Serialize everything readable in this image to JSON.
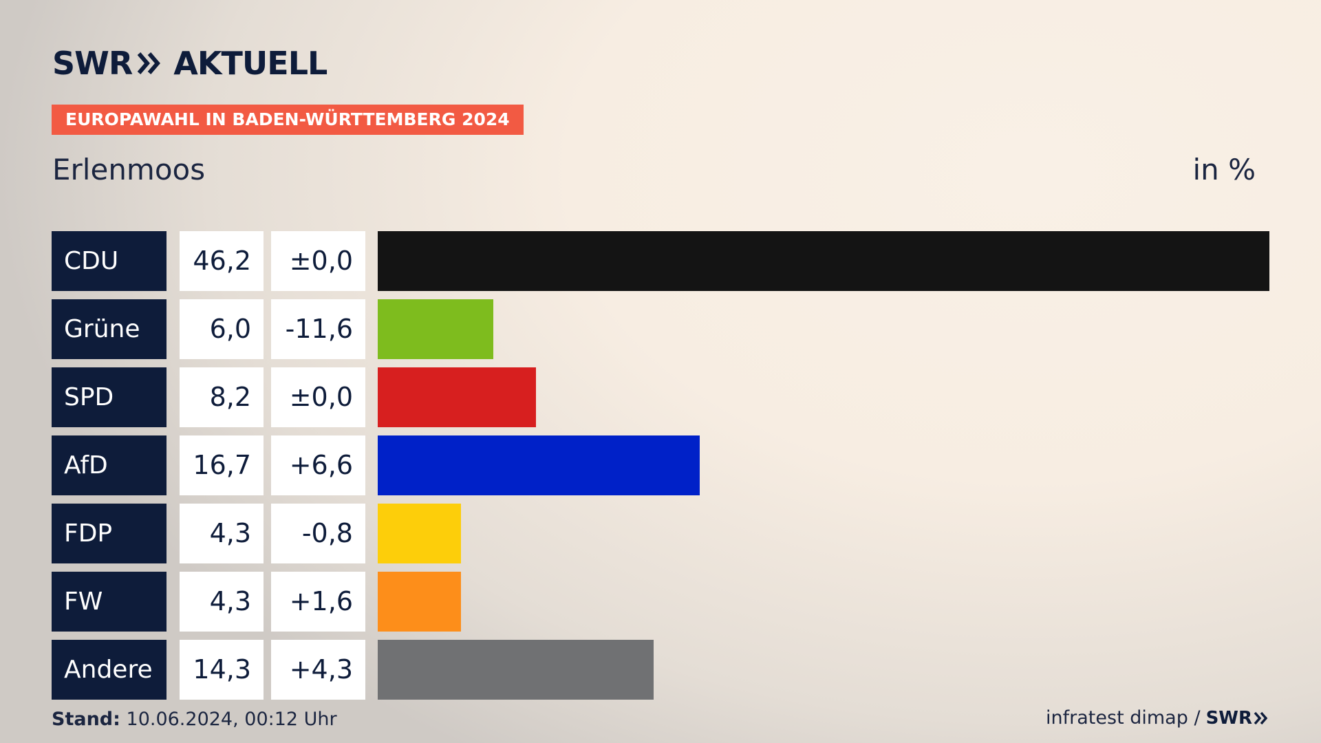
{
  "header": {
    "logo_left": "SWR",
    "logo_right": "AKTUELL",
    "badge": "EUROPAWAHL IN BADEN-WÜRTTEMBERG 2024",
    "place": "Erlenmoos",
    "unit": "in %"
  },
  "chart_data": {
    "type": "bar",
    "orientation": "horizontal",
    "categories": [
      "CDU",
      "Grüne",
      "SPD",
      "AfD",
      "FDP",
      "FW",
      "Andere"
    ],
    "values": [
      46.2,
      6.0,
      8.2,
      16.7,
      4.3,
      4.3,
      14.3
    ],
    "value_labels": [
      "46,2",
      "6,0",
      "8,2",
      "16,7",
      "4,3",
      "4,3",
      "14,3"
    ],
    "changes": [
      "±0,0",
      "-11,6",
      "±0,0",
      "+6,6",
      "-0,8",
      "+1,6",
      "+4,3"
    ],
    "colors": [
      "#141414",
      "#7ebc1e",
      "#d71f1f",
      "#0021c8",
      "#fdce0a",
      "#fd8e1a",
      "#707173"
    ],
    "title": "Erlenmoos",
    "xlabel": "",
    "ylabel": "in %",
    "xlim": [
      0,
      46.2
    ],
    "grid": false,
    "legend": "none"
  },
  "footer": {
    "stand_label": "Stand:",
    "stand_value": "10.06.2024, 00:12 Uhr",
    "source": "infratest dimap /",
    "source_logo": "SWR"
  }
}
